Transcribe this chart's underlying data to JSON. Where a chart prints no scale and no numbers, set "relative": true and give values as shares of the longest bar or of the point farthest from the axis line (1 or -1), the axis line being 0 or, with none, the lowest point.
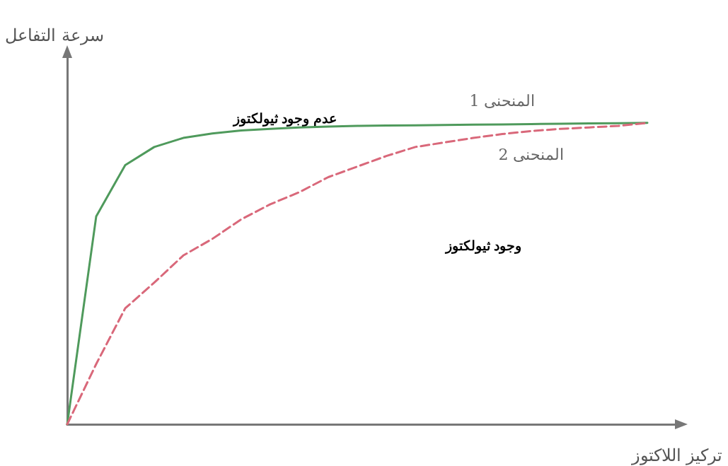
{
  "chart_data": {
    "type": "line",
    "relative": true,
    "xlabel": "تركيز اللاكتوز",
    "ylabel": "سرعة التفاعل",
    "categories": [
      null,
      null,
      null,
      null,
      null,
      null,
      null,
      null,
      null,
      null,
      null,
      null,
      null,
      null,
      null,
      null,
      null,
      null,
      null,
      null,
      null,
      null
    ],
    "series": [
      {
        "name": "المنحنى 1",
        "color": "#4f9a5c",
        "line_style": "solid",
        "values": [
          0,
          0.69,
          0.86,
          0.92,
          0.95,
          0.965,
          0.975,
          0.98,
          0.985,
          0.988,
          0.99,
          0.991,
          0.992,
          0.993,
          0.994,
          0.995,
          0.996,
          0.997,
          0.998,
          0.999,
          1,
          null
        ]
      },
      {
        "name": "المنحنى 2",
        "color": "#d9687a",
        "line_style": "dashed",
        "values": [
          0,
          0.2,
          0.385,
          0.47,
          0.56,
          0.615,
          0.68,
          0.73,
          0.77,
          0.82,
          0.855,
          0.89,
          0.92,
          0.935,
          0.95,
          0.963,
          0.973,
          0.98,
          0.985,
          0.99,
          1,
          null
        ]
      }
    ],
    "annotations": [
      "عدم وجود ثيولكتوز",
      "وجود ثيولكتوز"
    ],
    "legend": false,
    "grid": false,
    "marker": "none"
  }
}
